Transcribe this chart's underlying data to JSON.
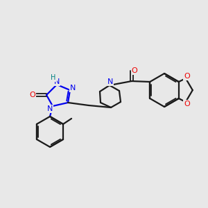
{
  "background_color": "#e8e8e8",
  "bond_color": "#1a1a1a",
  "nitrogen_color": "#0000ee",
  "oxygen_color": "#ee0000",
  "hydrogen_color": "#008080",
  "figsize": [
    3.0,
    3.0
  ],
  "dpi": 100,
  "xlim": [
    0,
    300
  ],
  "ylim": [
    0,
    300
  ]
}
